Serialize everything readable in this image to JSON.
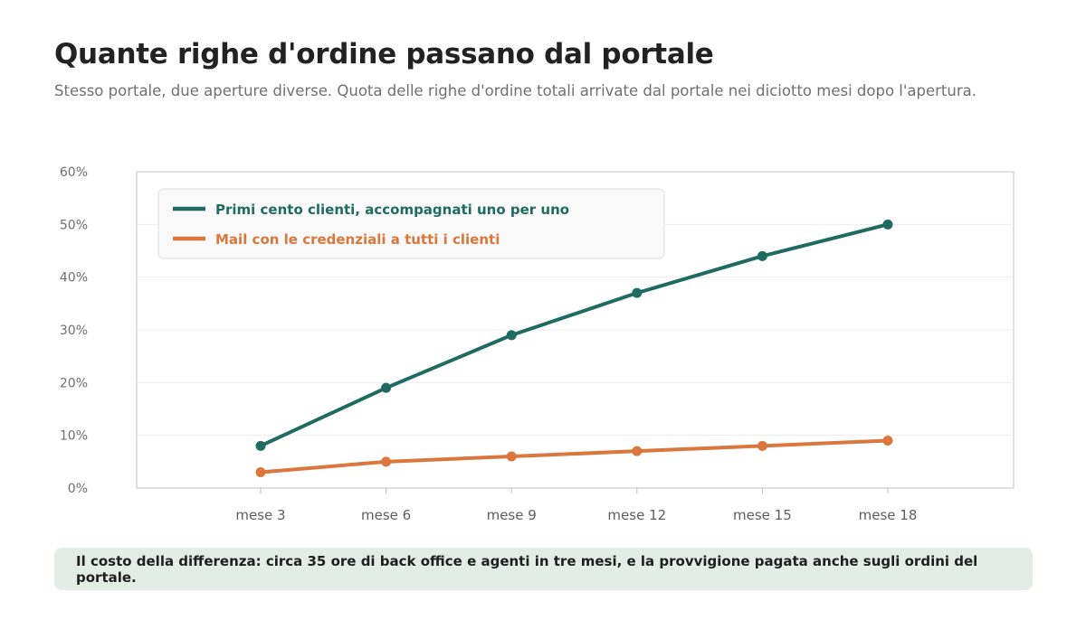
{
  "header": {
    "title": "Quante righe d'ordine passano dal portale",
    "subtitle": "Stesso portale, due aperture diverse. Quota delle righe d'ordine totali arrivate dal portale nei diciotto mesi dopo l'apertura."
  },
  "chart_data": {
    "type": "line",
    "categories": [
      "mese 3",
      "mese 6",
      "mese 9",
      "mese 12",
      "mese 15",
      "mese 18"
    ],
    "series": [
      {
        "name": "Primi cento clienti, accompagnati uno per uno",
        "color": "#1f6b62",
        "values": [
          8,
          19,
          29,
          37,
          44,
          50
        ]
      },
      {
        "name": "Mail con le credenziali a tutti i clienti",
        "color": "#d9773c",
        "values": [
          3,
          5,
          6,
          7,
          8,
          9
        ]
      }
    ],
    "ylim": [
      0,
      60
    ],
    "yticks": [
      "0%",
      "10%",
      "20%",
      "30%",
      "40%",
      "50%",
      "60%"
    ],
    "grid": true,
    "legend_position": "top-left"
  },
  "footer": {
    "note": "Il costo della differenza: circa 35 ore di back office e agenti in tre mesi, e la provvigione pagata anche sugli ordini del portale."
  }
}
